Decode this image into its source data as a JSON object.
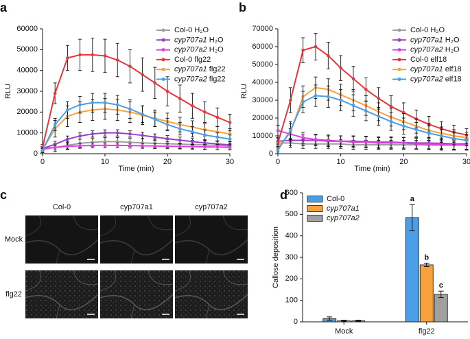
{
  "chart_data": [
    {
      "type": "line",
      "panel": "a",
      "xlabel": "Time (min)",
      "ylabel": "RLU",
      "xlim": [
        0,
        30
      ],
      "xticks": [
        0,
        10,
        20,
        30
      ],
      "ylim": [
        0,
        60000
      ],
      "yticks": [
        0,
        10000,
        20000,
        30000,
        40000,
        50000,
        60000
      ],
      "x": [
        0,
        2,
        4,
        6,
        8,
        10,
        12,
        14,
        16,
        18,
        20,
        22,
        24,
        26,
        28,
        30
      ],
      "series": [
        {
          "name": "Col-0 H₂O",
          "color": "#9e9e9e",
          "values": [
            2000,
            3000,
            4000,
            5000,
            5500,
            5800,
            5800,
            5500,
            5200,
            5000,
            4800,
            4600,
            4400,
            4200,
            4000,
            3800
          ],
          "errors": [
            1500,
            2000,
            2000,
            2000,
            2000,
            2000,
            2000,
            2000,
            2000,
            2000,
            2000,
            2000,
            2000,
            2000,
            2000,
            2000
          ]
        },
        {
          "name": "cyp707a1 H₂O",
          "color": "#9b3fc9",
          "values": [
            2500,
            4500,
            7000,
            8500,
            9500,
            10000,
            10000,
            9500,
            8800,
            8000,
            7200,
            6500,
            5800,
            5200,
            4700,
            4200
          ],
          "errors": [
            1000,
            1500,
            1500,
            1500,
            1500,
            1500,
            1500,
            1500,
            1500,
            1500,
            1500,
            1500,
            1500,
            1500,
            1500,
            1500
          ]
        },
        {
          "name": "cyp707a2 H₂O",
          "color": "#e040e0",
          "values": [
            2500,
            3000,
            3500,
            3800,
            4000,
            4000,
            4000,
            3900,
            3800,
            3700,
            3600,
            3500,
            3400,
            3300,
            3200,
            3100
          ],
          "errors": [
            1000,
            1200,
            1200,
            1200,
            1200,
            1200,
            1200,
            1200,
            1200,
            1200,
            1200,
            1200,
            1200,
            1200,
            1200,
            1200
          ]
        },
        {
          "name": "Col-0 flg22",
          "color": "#e8353b",
          "values": [
            3000,
            29000,
            46000,
            47500,
            47500,
            47000,
            45000,
            42000,
            38000,
            34000,
            30000,
            26500,
            23000,
            20000,
            17500,
            15000
          ],
          "errors": [
            1500,
            5000,
            6000,
            7500,
            8000,
            8000,
            8000,
            8000,
            8000,
            7500,
            7000,
            6500,
            6000,
            5000,
            4500,
            4000
          ]
        },
        {
          "name": "cyp707a1 flg22",
          "color": "#f7a23d",
          "values": [
            2000,
            12000,
            18000,
            20000,
            21000,
            21500,
            21000,
            20000,
            18500,
            17000,
            15500,
            14000,
            12800,
            11500,
            10500,
            9500
          ],
          "errors": [
            1000,
            4000,
            5000,
            5000,
            5000,
            5000,
            5000,
            5000,
            4500,
            4000,
            4000,
            3500,
            3000,
            3000,
            2500,
            2500
          ]
        },
        {
          "name": "cyp707a2 flg22",
          "color": "#4a9ee8",
          "values": [
            1500,
            14000,
            21000,
            23500,
            24500,
            24500,
            23500,
            21500,
            19000,
            16500,
            14000,
            12000,
            10500,
            9000,
            8000,
            7000
          ],
          "errors": [
            1000,
            3000,
            4000,
            4000,
            4500,
            4500,
            4500,
            4500,
            4000,
            3500,
            3000,
            3000,
            2500,
            2500,
            2000,
            2000
          ]
        }
      ]
    },
    {
      "type": "line",
      "panel": "b",
      "xlabel": "Time (min)",
      "ylabel": "RLU",
      "xlim": [
        0,
        30
      ],
      "xticks": [
        0,
        10,
        20,
        30
      ],
      "ylim": [
        0,
        70000
      ],
      "yticks": [
        0,
        10000,
        20000,
        30000,
        40000,
        50000,
        60000,
        70000
      ],
      "x": [
        0,
        2,
        4,
        6,
        8,
        10,
        12,
        14,
        16,
        18,
        20,
        22,
        24,
        26,
        28,
        30
      ],
      "series": [
        {
          "name": "Col-0 H₂O",
          "color": "#9e9e9e",
          "values": [
            6000,
            6000,
            5500,
            5500,
            5500,
            5500,
            5000,
            5000,
            5000,
            5000,
            5000,
            5000,
            4800,
            4800,
            4800,
            4800
          ],
          "errors": [
            2500,
            2500,
            2500,
            2500,
            2500,
            2500,
            2500,
            2500,
            2500,
            2500,
            2500,
            2500,
            2500,
            2500,
            2500,
            2500
          ]
        },
        {
          "name": "cyp707a1 H₂O",
          "color": "#9b3fc9",
          "values": [
            7000,
            7500,
            7500,
            7500,
            7000,
            7000,
            7000,
            6800,
            6500,
            6500,
            6200,
            6000,
            6000,
            5800,
            5500,
            5500
          ],
          "errors": [
            3000,
            3000,
            3000,
            3000,
            3000,
            3000,
            3000,
            3000,
            3000,
            3000,
            3000,
            3000,
            3000,
            3000,
            3000,
            3000
          ]
        },
        {
          "name": "cyp707a2 H₂O",
          "color": "#e040e0",
          "values": [
            13000,
            11000,
            9000,
            8000,
            7500,
            7000,
            6500,
            6500,
            6000,
            6000,
            6000,
            5500,
            5500,
            5000,
            5000,
            5000
          ],
          "errors": [
            3000,
            3000,
            3000,
            3000,
            3000,
            3000,
            3000,
            3000,
            3000,
            3000,
            3000,
            3000,
            3000,
            3000,
            3000,
            3000
          ]
        },
        {
          "name": "Col-0 elf18",
          "color": "#e8353b",
          "values": [
            6000,
            30000,
            58000,
            60000,
            55000,
            48000,
            42000,
            36000,
            31000,
            26500,
            23000,
            19500,
            16500,
            14000,
            12000,
            10500
          ],
          "errors": [
            3000,
            7000,
            7000,
            7500,
            7500,
            7000,
            7000,
            6500,
            6000,
            6000,
            5500,
            5000,
            4500,
            4000,
            4000,
            3500
          ]
        },
        {
          "name": "cyp707a1 elf18",
          "color": "#f7a23d",
          "values": [
            3000,
            12000,
            32000,
            37000,
            36000,
            33000,
            30000,
            27000,
            23500,
            20500,
            18000,
            15500,
            13000,
            11500,
            10000,
            9000
          ],
          "errors": [
            2000,
            5000,
            6000,
            6000,
            6000,
            6000,
            6000,
            5500,
            5000,
            5000,
            4500,
            4000,
            4000,
            3500,
            3500,
            3000
          ]
        },
        {
          "name": "cyp707a2 elf18",
          "color": "#4a9ee8",
          "values": [
            2000,
            13000,
            29000,
            32500,
            32000,
            30000,
            27000,
            24000,
            21000,
            18000,
            15500,
            13500,
            11500,
            10000,
            8500,
            7500
          ],
          "errors": [
            2000,
            5000,
            6000,
            6000,
            6000,
            6000,
            6000,
            5500,
            5000,
            5000,
            4500,
            4000,
            4000,
            3500,
            3500,
            3000
          ]
        }
      ]
    },
    {
      "type": "bar",
      "panel": "d",
      "ylabel": "Callose deposition",
      "categories": [
        "Mock",
        "flg22"
      ],
      "ylim": [
        0,
        600
      ],
      "yticks": [
        0,
        100,
        200,
        300,
        400,
        500,
        600
      ],
      "series": [
        {
          "name": "Col-0",
          "color": "#4a9ee8",
          "values": [
            15,
            485
          ],
          "errors": [
            8,
            60
          ],
          "letters": [
            null,
            "a"
          ]
        },
        {
          "name": "cyp707a1",
          "color": "#f7a23d",
          "values": [
            5,
            265
          ],
          "errors": [
            3,
            8
          ],
          "letters": [
            null,
            "b"
          ]
        },
        {
          "name": "cyp707a2",
          "color": "#a0a0a0",
          "values": [
            5,
            128
          ],
          "errors": [
            3,
            15
          ],
          "letters": [
            null,
            "c"
          ]
        }
      ]
    }
  ],
  "images": {
    "panel": "c",
    "columns": [
      "Col-0",
      "cyp707a1",
      "cyp707a2"
    ],
    "rows": [
      "Mock",
      "flg22"
    ]
  }
}
